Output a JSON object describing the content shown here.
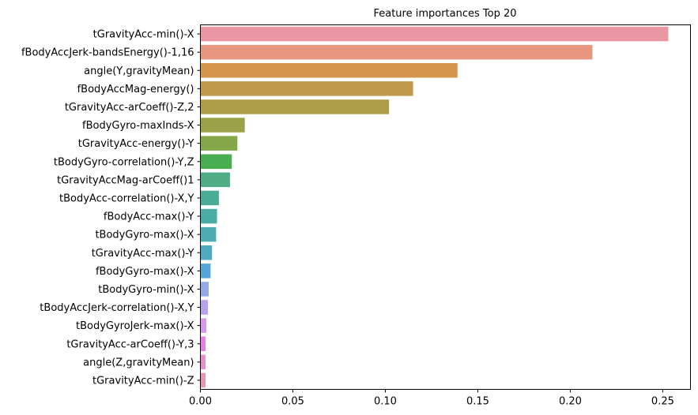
{
  "chart_data": {
    "type": "bar",
    "orientation": "horizontal",
    "title": "Feature importances Top 20",
    "xlabel": "",
    "ylabel": "",
    "xlim": [
      0,
      0.265
    ],
    "xticks": [
      "0.00",
      "0.05",
      "0.10",
      "0.15",
      "0.20",
      "0.25"
    ],
    "grid": false,
    "categories": [
      "tGravityAcc-min()-X",
      "fBodyAccJerk-bandsEnergy()-1,16",
      "angle(Y,gravityMean)",
      "fBodyAccMag-energy()",
      "tGravityAcc-arCoeff()-Z,2",
      "fBodyGyro-maxInds-X",
      "tGravityAcc-energy()-Y",
      "tBodyGyro-correlation()-Y,Z",
      "tGravityAccMag-arCoeff()1",
      "tBodyAcc-correlation()-X,Y",
      "fBodyAcc-max()-Y",
      "tBodyGyro-max()-X",
      "tGravityAcc-max()-Y",
      "fBodyGyro-max()-X",
      "tBodyGyro-min()-X",
      "tBodyAccJerk-correlation()-X,Y",
      "tBodyGyroJerk-max()-X",
      "tGravityAcc-arCoeff()-Y,3",
      "angle(Z,gravityMean)",
      "tGravityAcc-min()-Z"
    ],
    "values": [
      0.253,
      0.212,
      0.139,
      0.115,
      0.102,
      0.024,
      0.02,
      0.017,
      0.016,
      0.01,
      0.009,
      0.0085,
      0.0063,
      0.0055,
      0.0045,
      0.0041,
      0.0032,
      0.0028,
      0.0028,
      0.0028
    ],
    "colors": [
      "#ea96a3",
      "#e8967f",
      "#d6954d",
      "#c0994c",
      "#ae9d48",
      "#9aa148",
      "#84a749",
      "#49ad51",
      "#4ead84",
      "#4bad97",
      "#4baca5",
      "#4eabb0",
      "#51a9c0",
      "#56a6db",
      "#95abe9",
      "#b7a1ea",
      "#d49ae9",
      "#e580e4",
      "#e88fcc",
      "#e995b8"
    ]
  }
}
